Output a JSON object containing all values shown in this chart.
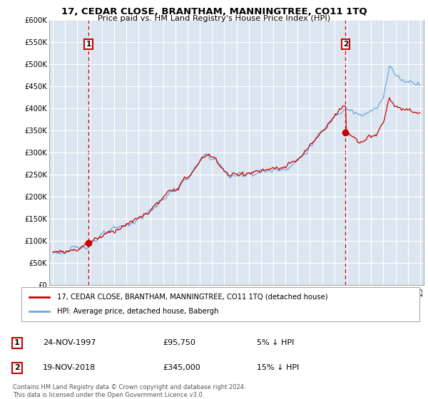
{
  "title": "17, CEDAR CLOSE, BRANTHAM, MANNINGTREE, CO11 1TQ",
  "subtitle": "Price paid vs. HM Land Registry's House Price Index (HPI)",
  "legend_line1": "17, CEDAR CLOSE, BRANTHAM, MANNINGTREE, CO11 1TQ (detached house)",
  "legend_line2": "HPI: Average price, detached house, Babergh",
  "footnote": "Contains HM Land Registry data © Crown copyright and database right 2024.\nThis data is licensed under the Open Government Licence v3.0.",
  "transaction1_label": "1",
  "transaction1_date": "24-NOV-1997",
  "transaction1_price": "£95,750",
  "transaction1_info": "5% ↓ HPI",
  "transaction2_label": "2",
  "transaction2_date": "19-NOV-2018",
  "transaction2_price": "£345,000",
  "transaction2_info": "15% ↓ HPI",
  "hpi_color": "#6fa8dc",
  "price_color": "#cc0000",
  "marker_color": "#cc0000",
  "annotation_box_color": "#cc0000",
  "bg_color": "#dce6f1",
  "ylim": [
    0,
    600000
  ],
  "yticks": [
    0,
    50000,
    100000,
    150000,
    200000,
    250000,
    300000,
    350000,
    400000,
    450000,
    500000,
    550000,
    600000
  ],
  "ytick_labels": [
    "£0",
    "£50K",
    "£100K",
    "£150K",
    "£200K",
    "£250K",
    "£300K",
    "£350K",
    "£400K",
    "£450K",
    "£500K",
    "£550K",
    "£600K"
  ]
}
